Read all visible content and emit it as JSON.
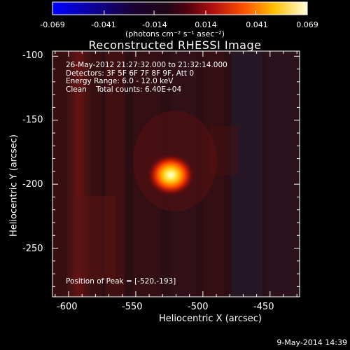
{
  "colorbar": {
    "ticks": [
      "-0.069",
      "-0.041",
      "-0.014",
      "0.014",
      "0.041",
      "0.069"
    ],
    "units": "(photons cm⁻² s⁻¹ asec⁻²)"
  },
  "chart_data": {
    "type": "heatmap",
    "title": "Reconstructed RHESSI Image",
    "xlabel": "Heliocentric X (arcsec)",
    "ylabel": "Heliocentric Y (arcsec)",
    "xlim": [
      -612,
      -428
    ],
    "ylim": [
      -288,
      -96
    ],
    "x_ticks": [
      "-600",
      "-550",
      "-500",
      "-450"
    ],
    "y_ticks": [
      "-100",
      "-150",
      "-200",
      "-250"
    ],
    "x_tick_values": [
      -600,
      -550,
      -500,
      -450
    ],
    "y_tick_values": [
      -100,
      -150,
      -200,
      -250
    ],
    "colorbar_range": [
      -0.069,
      0.069
    ],
    "colormap": "blue-black-red-yellow-white",
    "peak": {
      "x": -520,
      "y": -193
    },
    "annotations": [
      "26-May-2012 21:27:32.000 to 21:32:14.000",
      "Detectors: 3F 5F 6F 7F 8F 9F, Att 0",
      "Energy Range: 6.0 - 12.0 keV",
      "Clean    Total counts: 6.40E+04"
    ],
    "peak_label": "Position of Peak = [-520,-193]"
  },
  "footer": "9-May-2014 14:39"
}
